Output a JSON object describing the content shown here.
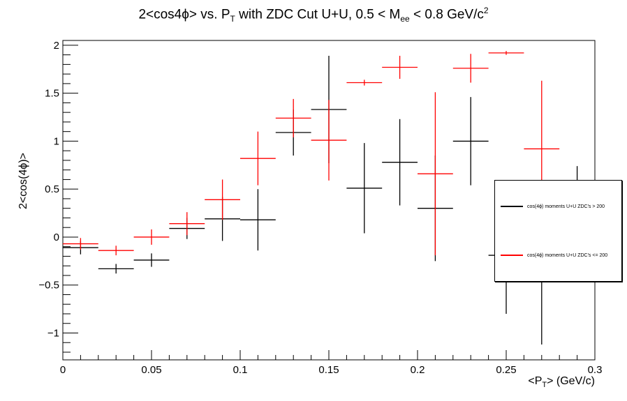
{
  "title_html_parts": {
    "prefix": "2<cos4",
    "phi": "ϕ",
    "mid": "> vs. P",
    "sub_T": "T",
    "after": " with ZDC Cut U+U, 0.5 < M",
    "sub_ee": "ee",
    "tail": " < 0.8 GeV/c",
    "sup": "2"
  },
  "ylabel": "2<cos(4ϕ)>",
  "xlabel_parts": {
    "a": "<P",
    "sub": "T",
    "b": "> (GeV/c)"
  },
  "legend": {
    "entry_black": "cos(4ϕ) moments  U+U ZDC's > 200",
    "entry_red": "cos(4ϕ) moments  U+U ZDC's <= 200"
  },
  "colors": {
    "black_series": "#000000",
    "red_series": "#ff0000",
    "axes": "#000000"
  },
  "chart_data": {
    "type": "scatter",
    "title": "2<cos4ϕ> vs. P_T with ZDC Cut U+U, 0.5 < M_ee < 0.8 GeV/c^2",
    "xlabel": "<P_T> (GeV/c)",
    "ylabel": "2<cos(4ϕ)>",
    "xlim": [
      0,
      0.3
    ],
    "ylim": [
      -1.28,
      2.05
    ],
    "xticks": [
      0,
      0.05,
      0.1,
      0.15,
      0.2,
      0.25,
      0.3
    ],
    "xtick_labels": [
      "0",
      "0.05",
      "0.1",
      "0.15",
      "0.2",
      "0.25",
      "0.3"
    ],
    "yticks": [
      -1,
      -0.5,
      0,
      0.5,
      1,
      1.5,
      2
    ],
    "ytick_labels": [
      "−1",
      "−0.5",
      "0",
      "0.5",
      "1",
      "1.5",
      "2"
    ],
    "grid": false,
    "legend_position": "right",
    "series": [
      {
        "name": "cos(4ϕ) moments  U+U ZDC's > 200",
        "color": "#000000",
        "points": [
          {
            "x": 0.01,
            "y": -0.11,
            "xerr": 0.01,
            "yerr": 0.07
          },
          {
            "x": 0.03,
            "y": -0.33,
            "xerr": 0.01,
            "yerr": 0.05
          },
          {
            "x": 0.05,
            "y": -0.24,
            "xerr": 0.01,
            "yerr": 0.07
          },
          {
            "x": 0.07,
            "y": 0.09,
            "xerr": 0.01,
            "yerr": 0.11
          },
          {
            "x": 0.09,
            "y": 0.19,
            "xerr": 0.01,
            "yerr": 0.23
          },
          {
            "x": 0.11,
            "y": 0.18,
            "xerr": 0.01,
            "yerr": 0.32
          },
          {
            "x": 0.13,
            "y": 1.09,
            "xerr": 0.01,
            "yerr": 0.24
          },
          {
            "x": 0.15,
            "y": 1.33,
            "xerr": 0.01,
            "yerr": 0.56
          },
          {
            "x": 0.17,
            "y": 0.51,
            "xerr": 0.01,
            "yerr": 0.47
          },
          {
            "x": 0.19,
            "y": 0.78,
            "xerr": 0.01,
            "yerr": 0.45
          },
          {
            "x": 0.21,
            "y": 0.3,
            "xerr": 0.01,
            "yerr": 0.55
          },
          {
            "x": 0.23,
            "y": 1.0,
            "xerr": 0.01,
            "yerr": 0.46
          },
          {
            "x": 0.25,
            "y": -0.19,
            "xerr": 0.01,
            "yerr": 0.61
          },
          {
            "x": 0.27,
            "y": -0.38,
            "xerr": 0.01,
            "yerr": 0.74
          },
          {
            "x": 0.29,
            "y": 0.56,
            "xerr": 0.01,
            "yerr": 0.18
          }
        ]
      },
      {
        "name": "cos(4ϕ) moments  U+U ZDC's <= 200",
        "color": "#ff0000",
        "points": [
          {
            "x": 0.01,
            "y": -0.07,
            "xerr": 0.01,
            "yerr": 0.06
          },
          {
            "x": 0.03,
            "y": -0.14,
            "xerr": 0.01,
            "yerr": 0.05
          },
          {
            "x": 0.05,
            "y": 0.0,
            "xerr": 0.01,
            "yerr": 0.08
          },
          {
            "x": 0.07,
            "y": 0.14,
            "xerr": 0.01,
            "yerr": 0.12
          },
          {
            "x": 0.09,
            "y": 0.39,
            "xerr": 0.01,
            "yerr": 0.21
          },
          {
            "x": 0.11,
            "y": 0.82,
            "xerr": 0.01,
            "yerr": 0.28
          },
          {
            "x": 0.13,
            "y": 1.24,
            "xerr": 0.01,
            "yerr": 0.2
          },
          {
            "x": 0.15,
            "y": 1.01,
            "xerr": 0.01,
            "yerr": 0.42
          },
          {
            "x": 0.17,
            "y": 1.61,
            "xerr": 0.01,
            "yerr": 0.03
          },
          {
            "x": 0.19,
            "y": 1.77,
            "xerr": 0.01,
            "yerr": 0.12
          },
          {
            "x": 0.21,
            "y": 0.66,
            "xerr": 0.01,
            "yerr": 0.85
          },
          {
            "x": 0.23,
            "y": 1.76,
            "xerr": 0.01,
            "yerr": 0.15
          },
          {
            "x": 0.25,
            "y": 1.92,
            "xerr": 0.01,
            "yerr": 0.02
          },
          {
            "x": 0.27,
            "y": 0.92,
            "xerr": 0.01,
            "yerr": 0.71
          }
        ]
      }
    ]
  }
}
